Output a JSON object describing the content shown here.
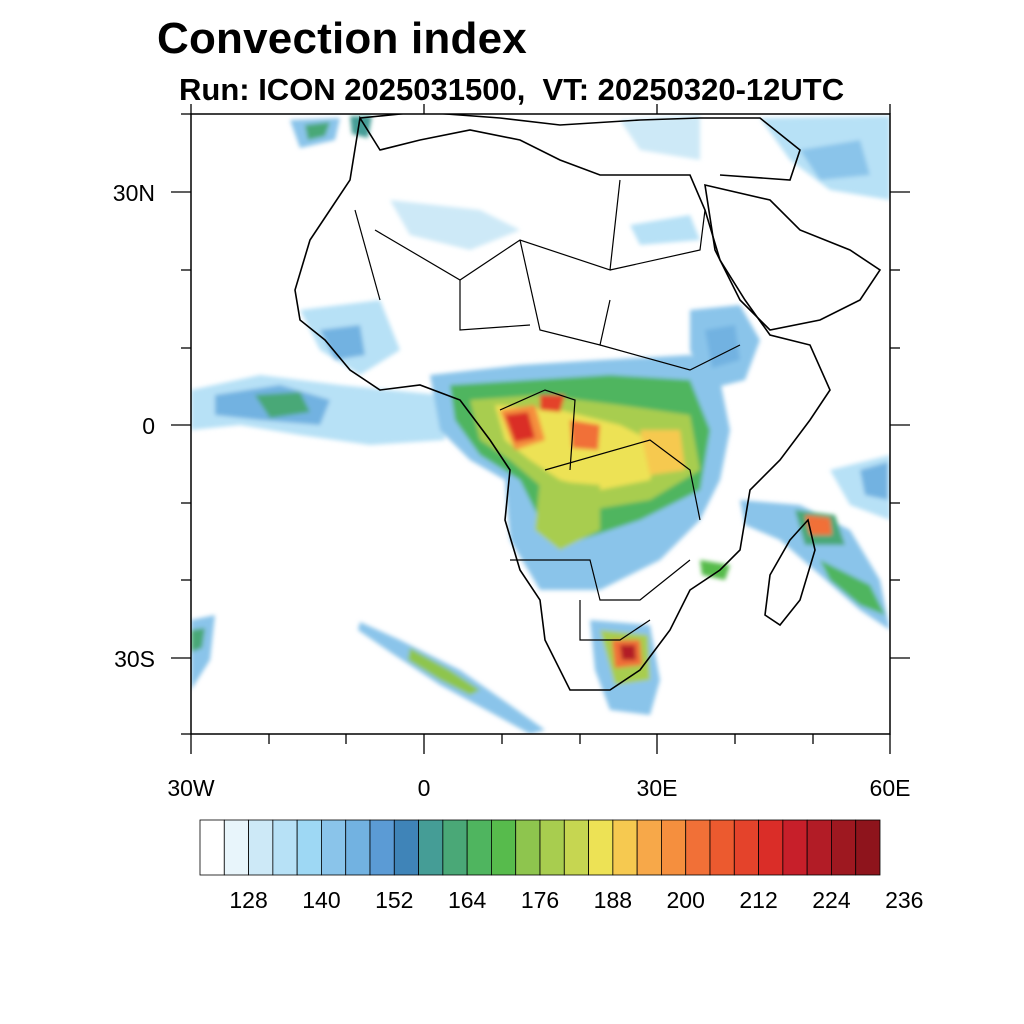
{
  "title": "Convection index",
  "subtitle": "Run: ICON 2025031500,  VT: 20250320-12UTC",
  "map": {
    "lon_range": [
      -30,
      60
    ],
    "lat_range": [
      -40,
      40
    ],
    "y_ticks": [
      "30N",
      "0",
      "30S"
    ],
    "x_ticks": [
      "30W",
      "0",
      "30E",
      "60E"
    ]
  },
  "colorbar": {
    "labels": [
      "128",
      "140",
      "152",
      "164",
      "176",
      "188",
      "200",
      "212",
      "224",
      "236"
    ],
    "colors": [
      "#ffffff",
      "#e8f5fb",
      "#cde9f7",
      "#b7e1f6",
      "#9ed8f4",
      "#8ac4ea",
      "#72b2e1",
      "#5b9bd5",
      "#3f84b8",
      "#459d96",
      "#4aa877",
      "#4fb55f",
      "#57bb4c",
      "#8ec54e",
      "#a8cd4f",
      "#c6d651",
      "#ede255",
      "#f6c950",
      "#f7a849",
      "#f58f3e",
      "#f17037",
      "#ec5a2f",
      "#e4432b",
      "#da2d28",
      "#c71f2a",
      "#b21c26",
      "#9e1820",
      "#8e141c"
    ]
  }
}
